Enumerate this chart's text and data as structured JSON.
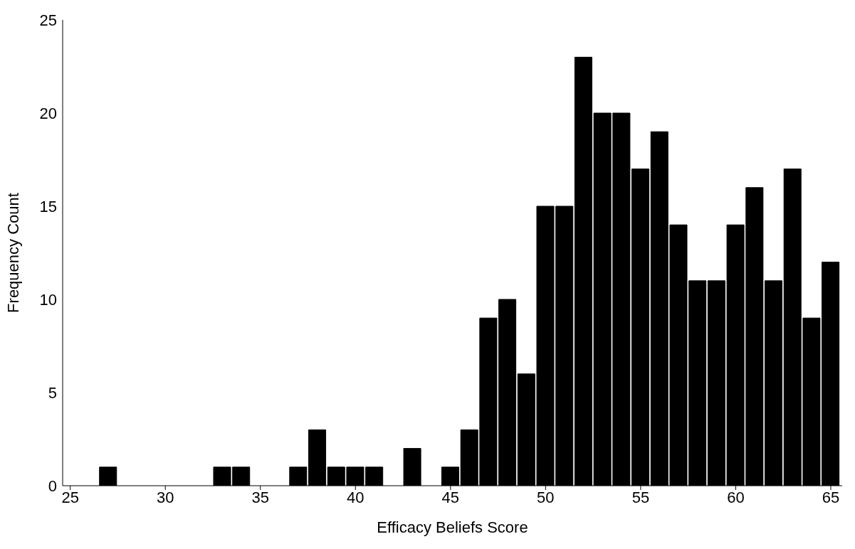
{
  "chart_data": {
    "type": "histogram",
    "xlabel": "Efficacy Beliefs Score",
    "ylabel": "Frequency Count",
    "color": "#000000",
    "bins": [
      26.5,
      27.5,
      28.5,
      29.5,
      30.5,
      31.5,
      32.5,
      33.5,
      34.5,
      35.5,
      36.5,
      37.5,
      38.5,
      39.5,
      40.5,
      41.5,
      42.5,
      43.5,
      44.5,
      45.5,
      46.5,
      47.5,
      48.5,
      49.5,
      50.5,
      51.5,
      52.5,
      53.5,
      54.5,
      55.5,
      56.5,
      57.5,
      58.5,
      59.5,
      60.5,
      61.5,
      62.5,
      63.5,
      64.5,
      65.5
    ],
    "values": [
      1,
      0,
      0,
      0,
      0,
      0,
      1,
      1,
      0,
      0,
      1,
      3,
      1,
      1,
      1,
      0,
      2,
      0,
      1,
      3,
      9,
      10,
      6,
      15,
      15,
      23,
      20,
      20,
      17,
      19,
      14,
      11,
      11,
      14,
      16,
      11,
      17,
      9,
      12
    ],
    "xlim": [
      24.6,
      65.6
    ],
    "xticks": [
      25,
      30,
      35,
      40,
      45,
      50,
      55,
      60,
      65
    ],
    "ylim": [
      0,
      25
    ],
    "yticks": [
      0,
      5,
      10,
      15,
      20,
      25
    ],
    "grid": false,
    "legend": false
  }
}
